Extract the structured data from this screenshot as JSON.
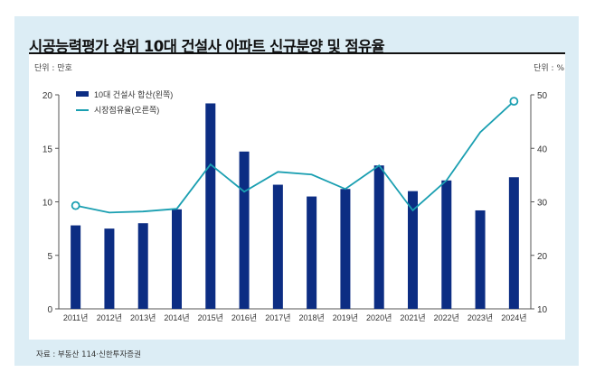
{
  "title": "시공능력평가 상위 10대 건설사 아파트 신규분양 및 점유율",
  "unit_left": "단위 : 만호",
  "unit_right": "단위 : %",
  "source": "자료 : 부동산 114·신한투자증권",
  "colors": {
    "frame": "#dcedf5",
    "bar": "#0c2d83",
    "line": "#1a9fb1",
    "axis": "#555555"
  },
  "chart_data": {
    "type": "bar+line",
    "title": "시공능력평가 상위 10대 건설사 아파트 신규분양 및 점유율",
    "categories": [
      "2011년",
      "2012년",
      "2013년",
      "2014년",
      "2015년",
      "2016년",
      "2017년",
      "2018년",
      "2019년",
      "2020년",
      "2021년",
      "2022년",
      "2023년",
      "2024년"
    ],
    "series": [
      {
        "name": "10대 건설사 합산(왼쪽)",
        "type": "bar",
        "axis": "left",
        "values": [
          7.8,
          7.5,
          8.0,
          9.3,
          19.2,
          14.7,
          11.6,
          10.5,
          11.2,
          13.4,
          11.0,
          12.0,
          9.2,
          12.3
        ]
      },
      {
        "name": "시장점유율(오른쪽)",
        "type": "line",
        "axis": "right",
        "values": [
          29.3,
          28.0,
          28.2,
          28.7,
          37.0,
          31.9,
          35.6,
          35.1,
          32.4,
          36.8,
          28.4,
          34.0,
          43.0,
          48.8
        ],
        "markers": "first-and-last hollow circle"
      }
    ],
    "left_axis": {
      "label": "단위 : 만호",
      "ylim": [
        0,
        20
      ],
      "ticks": [
        0,
        5,
        10,
        15,
        20
      ]
    },
    "right_axis": {
      "label": "단위 : %",
      "ylim": [
        10,
        50
      ],
      "ticks": [
        10,
        20,
        30,
        40,
        50
      ]
    },
    "legend": {
      "placement": "top-left",
      "entries": [
        "10대 건설사 합산(왼쪽)",
        "시장점유율(오른쪽)"
      ]
    },
    "grid": false
  }
}
